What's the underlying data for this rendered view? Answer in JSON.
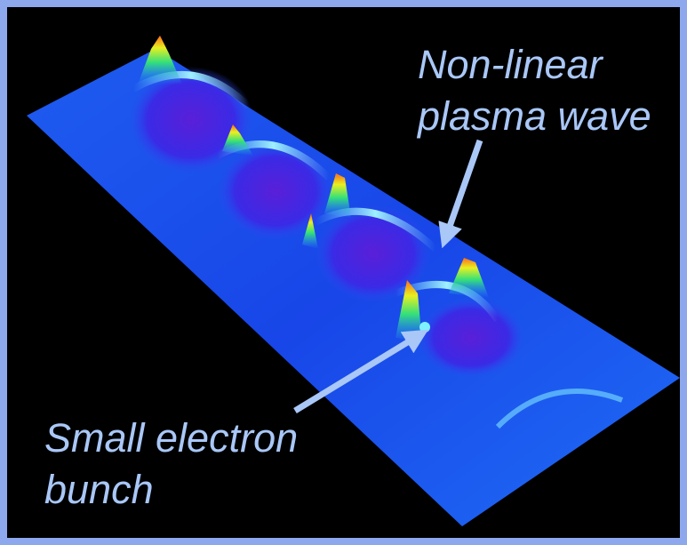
{
  "annotations": [
    {
      "lines": [
        "Non-linear",
        "plasma wave"
      ]
    },
    {
      "lines": [
        "Small electron",
        "bunch"
      ]
    }
  ]
}
